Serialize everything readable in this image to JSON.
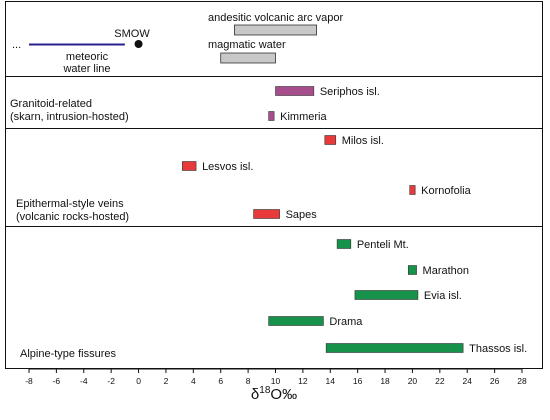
{
  "chart_data": {
    "type": "bar",
    "subtype": "floating-range",
    "xlim": [
      -8,
      28
    ],
    "x_ticks": [
      -8,
      -6,
      -4,
      -2,
      0,
      2,
      4,
      6,
      8,
      10,
      12,
      14,
      16,
      18,
      20,
      22,
      24,
      26,
      28
    ],
    "xlabel": {
      "main": "δ",
      "sup": "18",
      "rest": "O‰"
    },
    "grid": false,
    "legend": "none",
    "references": {
      "meteoric_line": {
        "label_line1": "meteoric",
        "label_line2": "water line",
        "dots": "...",
        "x": [
          -8,
          -1
        ],
        "color": "#2a1f8f"
      },
      "smow": {
        "label": "SMOW",
        "x": 0,
        "color": "#111111"
      },
      "ranges": [
        {
          "label": "andesitic volcanic arc vapor",
          "x": [
            7,
            13
          ]
        },
        {
          "label": "magmatic water",
          "x": [
            6,
            10
          ]
        }
      ],
      "reference_color": "#c8c8c8"
    },
    "groups": [
      {
        "label_line1": "Granitoid-related",
        "label_line2": "(skarn, intrusion-hosted)",
        "color": "#a64d8c",
        "items": [
          {
            "label": "Seriphos isl.",
            "x": [
              10,
              12.8
            ]
          },
          {
            "label": "Kimmeria",
            "x": [
              9.5,
              9.9
            ]
          }
        ]
      },
      {
        "label_line1": "Epithermal-style veins",
        "label_line2": "(volcanic rocks-hosted)",
        "color": "#e83a3a",
        "items": [
          {
            "label": "Milos isl.",
            "x": [
              13.6,
              14.4
            ]
          },
          {
            "label": "Lesvos isl.",
            "x": [
              3.2,
              4.2
            ]
          },
          {
            "label": "Kornofolia",
            "x": [
              19.8,
              20.2
            ]
          },
          {
            "label": "Sapes",
            "x": [
              8.4,
              10.3
            ]
          }
        ]
      },
      {
        "label_line1": "Alpine-type fissures",
        "label_line2": "",
        "color": "#17924a",
        "items": [
          {
            "label": "Penteli Mt.",
            "x": [
              14.5,
              15.5
            ]
          },
          {
            "label": "Marathon",
            "x": [
              19.7,
              20.3
            ]
          },
          {
            "label": "Evia isl.",
            "x": [
              15.8,
              20.4
            ]
          },
          {
            "label": "Drama",
            "x": [
              9.5,
              13.5
            ]
          },
          {
            "label": "Thassos  isl.",
            "x": [
              13.7,
              23.7
            ]
          }
        ]
      }
    ]
  }
}
